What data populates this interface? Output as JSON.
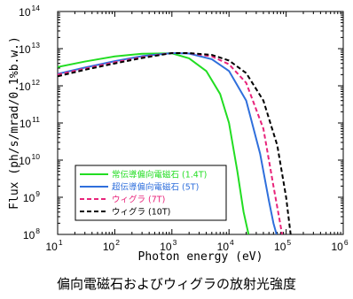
{
  "chart_data": {
    "type": "line",
    "x_scale": "log",
    "y_scale": "log",
    "xlim": [
      10,
      1000000
    ],
    "ylim": [
      100000000,
      100000000000000
    ],
    "xlabel": "Photon energy (eV)",
    "ylabel": "Flux (ph/s/mrad/0.1%b.w.)",
    "x_ticks": [
      {
        "base": "10",
        "exp": "1"
      },
      {
        "base": "10",
        "exp": "2"
      },
      {
        "base": "10",
        "exp": "3"
      },
      {
        "base": "10",
        "exp": "4"
      },
      {
        "base": "10",
        "exp": "5"
      },
      {
        "base": "10",
        "exp": "6"
      }
    ],
    "y_ticks": [
      {
        "base": "10",
        "exp": "8"
      },
      {
        "base": "10",
        "exp": "9"
      },
      {
        "base": "10",
        "exp": "10"
      },
      {
        "base": "10",
        "exp": "11"
      },
      {
        "base": "10",
        "exp": "12"
      },
      {
        "base": "10",
        "exp": "13"
      },
      {
        "base": "10",
        "exp": "14"
      }
    ],
    "series": [
      {
        "name": "常伝導偏向電磁石 (1.4T)",
        "color": "#22dd22",
        "dash": "solid",
        "x": [
          10,
          30,
          100,
          300,
          1000,
          2000,
          4000,
          7000,
          10000,
          14000,
          18000,
          22000
        ],
        "y": [
          3200000000000.0,
          4500000000000.0,
          6200000000000.0,
          7300000000000.0,
          7500000000000.0,
          5500000000000.0,
          2500000000000.0,
          600000000000.0,
          100000000000.0,
          5000000000.0,
          400000000.0,
          100000000.0
        ]
      },
      {
        "name": "超伝導偏向電磁石 (5T)",
        "color": "#2f6fdc",
        "dash": "solid",
        "x": [
          10,
          30,
          100,
          300,
          1000,
          2000,
          5000,
          10000,
          20000,
          35000,
          50000,
          60000,
          68000
        ],
        "y": [
          2100000000000.0,
          3100000000000.0,
          4600000000000.0,
          6300000000000.0,
          7600000000000.0,
          7400000000000.0,
          5200000000000.0,
          2500000000000.0,
          400000000000.0,
          15000000000.0,
          800000000.0,
          200000000.0,
          100000000.0
        ]
      },
      {
        "name": "ウィグラ (7T)",
        "color": "#e8237a",
        "dash": "dashed",
        "x": [
          10,
          30,
          100,
          300,
          1000,
          2000,
          5000,
          10000,
          20000,
          40000,
          60000,
          75000,
          85000
        ],
        "y": [
          2000000000000.0,
          2900000000000.0,
          4300000000000.0,
          5900000000000.0,
          7600000000000.0,
          7600000000000.0,
          6200000000000.0,
          3800000000000.0,
          1200000000000.0,
          70000000000.0,
          2000000000.0,
          300000000.0,
          100000000.0
        ]
      },
      {
        "name": "ウィグラ (10T)",
        "color": "#000000",
        "dash": "dashed",
        "x": [
          10,
          30,
          100,
          300,
          1000,
          2000,
          5000,
          10000,
          20000,
          40000,
          70000,
          100000,
          120000
        ],
        "y": [
          1800000000000.0,
          2700000000000.0,
          4000000000000.0,
          5600000000000.0,
          7600000000000.0,
          7600000000000.0,
          6800000000000.0,
          4800000000000.0,
          2200000000000.0,
          400000000000.0,
          25000000000.0,
          1000000000.0,
          100000000.0
        ]
      }
    ],
    "legend_position": "lower-left",
    "grid": false
  },
  "caption": "偏向電磁石およびウィグラの放射光強度"
}
